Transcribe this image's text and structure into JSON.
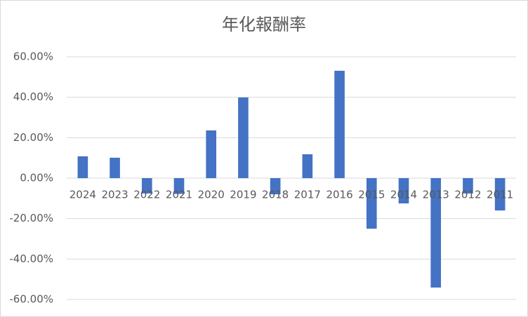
{
  "chart_data": {
    "type": "bar",
    "title": "年化報酬率",
    "categories": [
      "2024",
      "2023",
      "2022",
      "2021",
      "2020",
      "2019",
      "2018",
      "2017",
      "2016",
      "2015",
      "2014",
      "2013",
      "2012",
      "2011"
    ],
    "values": [
      10.8,
      10.1,
      -7.6,
      -7.8,
      23.6,
      39.9,
      -8,
      11.8,
      53.1,
      -25,
      -12.5,
      -54.1,
      -7.6,
      -16
    ],
    "color": "#4472c4",
    "ylim": [
      -60,
      60
    ],
    "yticks": [
      {
        "value": -60,
        "label": "-60.00%"
      },
      {
        "value": -40,
        "label": "-40.00%"
      },
      {
        "value": -20,
        "label": "-20.00%"
      },
      {
        "value": 0,
        "label": "0.00%"
      },
      {
        "value": 20,
        "label": "20.00%"
      },
      {
        "value": 40,
        "label": "40.00%"
      },
      {
        "value": 60,
        "label": "60.00%"
      }
    ],
    "grid": true
  }
}
